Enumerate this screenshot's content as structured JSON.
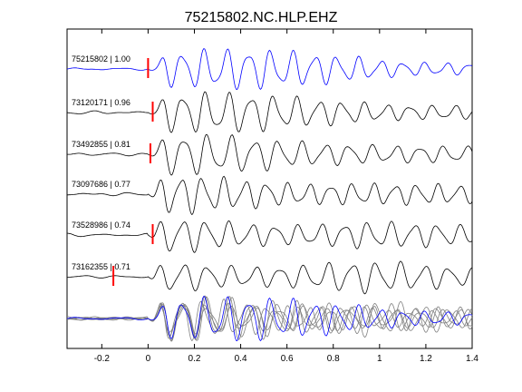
{
  "chart_data": {
    "type": "line",
    "title": "75215802.NC.HLP.EHZ",
    "xlabel": "",
    "ylabel": "",
    "xlim": [
      -0.35,
      1.4
    ],
    "x_ticks": [
      "-0.2",
      "0",
      "0.2",
      "0.4",
      "0.6",
      "0.8",
      "1",
      "1.2",
      "1.4"
    ],
    "x_tick_values": [
      -0.2,
      0,
      0.2,
      0.4,
      0.6,
      0.8,
      1.0,
      1.2,
      1.4
    ],
    "grid": false,
    "traces": [
      {
        "label": "75215802 | 1.00",
        "pick_time": 0.0,
        "color": "#0000ff",
        "freq": 10.5,
        "phase": 0.0
      },
      {
        "label": "73120171 | 0.96",
        "pick_time": 0.02,
        "color": "#000000",
        "freq": 10.2,
        "phase": 0.4
      },
      {
        "label": "73492855 | 0.81",
        "pick_time": 0.01,
        "color": "#000000",
        "freq": 9.8,
        "phase": 0.9
      },
      {
        "label": "73097686 | 0.77",
        "pick_time": null,
        "color": "#000000",
        "freq": 10.8,
        "phase": 1.5
      },
      {
        "label": "73528986 | 0.74",
        "pick_time": 0.02,
        "color": "#000000",
        "freq": 10.0,
        "phase": 2.1
      },
      {
        "label": "73162355 | 0.71",
        "pick_time": -0.15,
        "color": "#000000",
        "freq": 9.6,
        "phase": 2.7
      }
    ],
    "stack_colors": {
      "reference": "#0000ff",
      "others": "#808080"
    },
    "pick_color": "#ff0000"
  }
}
